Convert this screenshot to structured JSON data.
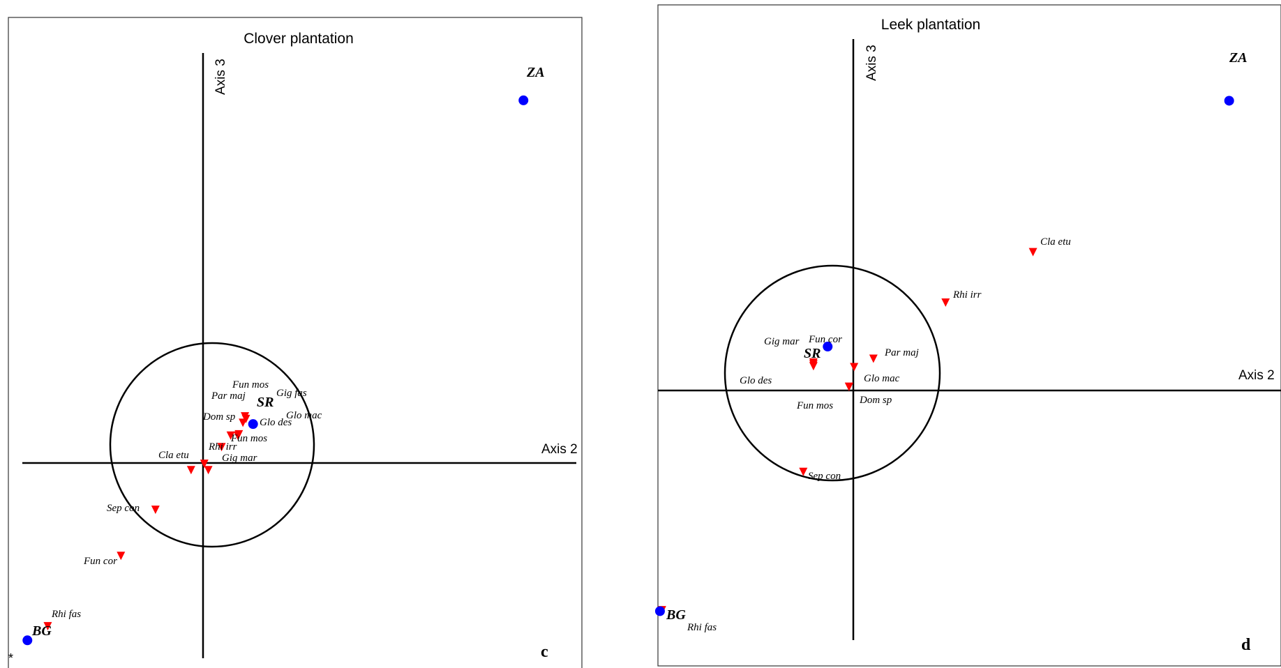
{
  "colors": {
    "site": "#0000ff",
    "species": "#ff0000"
  },
  "chart_data": [
    {
      "type": "scatter",
      "title": "Clover plantation",
      "xlabel": "Axis 2",
      "ylabel": "Axis 3",
      "panel_letter": "c",
      "corner_note": "*",
      "site_labels": {
        "za": "ZA",
        "sr": "SR",
        "bg": "BG"
      },
      "species_labels": {
        "fun_mos_top": "Fun mos",
        "gig_fas": "Gig fas",
        "par_maj": "Par maj",
        "glo_mac": "Glo mac",
        "dom_sp": "Dom sp",
        "glo_des": "Glo des",
        "fun_mos_low": "Fun mos",
        "rhi_irr": "Rhi irr",
        "cla_etu": "Cla etu",
        "gig_mar": "Gig mar",
        "sep_con": "Sep con",
        "fun_cor": "Fun cor",
        "rhi_fas": "Rhi fas"
      },
      "xlim": [
        -1.75,
        3.7
      ],
      "ylim": [
        -1.48,
        3.25
      ],
      "circle_radius": 1,
      "sites": [
        {
          "label": "ZA",
          "x": 3.18,
          "y": 2.88
        },
        {
          "label": "SR",
          "x": 0.52,
          "y": 0.35
        },
        {
          "label": "BG",
          "x": -1.7,
          "y": -1.34
        }
      ],
      "species": [
        {
          "label": "Fun mos",
          "x": 0.44,
          "y": 0.41
        },
        {
          "label": "Gig fas",
          "x": 0.45,
          "y": 0.39
        },
        {
          "label": "Par maj",
          "x": 0.42,
          "y": 0.36
        },
        {
          "label": "Glo mac",
          "x": 0.37,
          "y": 0.26
        },
        {
          "label": "Dom sp",
          "x": 0.3,
          "y": 0.26
        },
        {
          "label": "Glo des",
          "x": 0.38,
          "y": 0.27
        },
        {
          "label": "Fun mos",
          "x": 0.21,
          "y": 0.17
        },
        {
          "label": "Rhi irr",
          "x": 0.04,
          "y": 0.04
        },
        {
          "label": "Cla etu",
          "x": -0.09,
          "y": -0.01
        },
        {
          "label": "Gig mar",
          "x": 0.08,
          "y": -0.01
        },
        {
          "label": "Sep con",
          "x": -0.44,
          "y": -0.32
        },
        {
          "label": "Fun cor",
          "x": -0.78,
          "y": -0.68
        },
        {
          "label": "Rhi fas",
          "x": -1.5,
          "y": -1.23
        }
      ]
    },
    {
      "type": "scatter",
      "title": "Leek plantation",
      "xlabel": "Axis 2",
      "ylabel": "Axis 3",
      "panel_letter": "d",
      "site_labels": {
        "za": "ZA",
        "sr": "SR",
        "bg": "BG"
      },
      "species_labels": {
        "cla_etu": "Cla etu",
        "rhi_irr": "Rhi irr",
        "gig_mar": "Gig mar",
        "fun_cor": "Fun cor",
        "par_maj": "Par maj",
        "glo_des": "Glo des",
        "glo_mac": "Glo mac",
        "fun_mos": "Fun mos",
        "dom_sp": "Dom sp",
        "sep_con": "Sep con",
        "rhi_fas": "Rhi fas"
      },
      "xlim": [
        -1.88,
        4.25
      ],
      "ylim": [
        -2.77,
        3.66
      ],
      "circle_radius": 1,
      "sites": [
        {
          "label": "ZA",
          "x": 3.74,
          "y": 3.0
        },
        {
          "label": "SR",
          "x": -0.21,
          "y": 0.37
        },
        {
          "label": "BG",
          "x": -1.86,
          "y": -2.46
        }
      ],
      "species": [
        {
          "label": "Cla etu",
          "x": 1.81,
          "y": 1.38
        },
        {
          "label": "Rhi irr",
          "x": 0.95,
          "y": 0.84
        },
        {
          "label": "Gig mar",
          "x": -0.35,
          "y": 0.2
        },
        {
          "label": "Fun cor",
          "x": -0.35,
          "y": 0.18
        },
        {
          "label": "Par maj",
          "x": 0.24,
          "y": 0.24
        },
        {
          "label": "Glo des",
          "x": -0.35,
          "y": 0.16
        },
        {
          "label": "Glo mac",
          "x": 0.05,
          "y": 0.15
        },
        {
          "label": "Fun mos",
          "x": 0.0,
          "y": -0.06
        },
        {
          "label": "Dom sp",
          "x": 0.0,
          "y": -0.06
        },
        {
          "label": "Sep con",
          "x": -0.45,
          "y": -0.97
        },
        {
          "label": "Rhi fas",
          "x": -1.84,
          "y": -2.45
        }
      ]
    }
  ]
}
